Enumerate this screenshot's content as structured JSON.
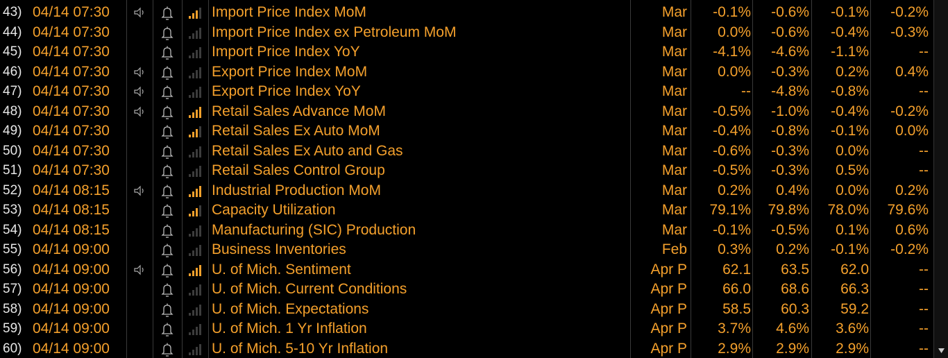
{
  "rows": [
    {
      "number": "43)",
      "datetime": "04/14 07:30",
      "alert": true,
      "relevance": 3,
      "event": "Import Price Index MoM",
      "period": "Mar",
      "survey": "-0.1%",
      "actual": "-0.6%",
      "prior": "-0.1%",
      "revised": "-0.2%"
    },
    {
      "number": "44)",
      "datetime": "04/14 07:30",
      "alert": false,
      "relevance": 0,
      "event": "Import Price Index ex Petroleum MoM",
      "period": "Mar",
      "survey": "0.0%",
      "actual": "-0.6%",
      "prior": "-0.4%",
      "revised": "-0.3%"
    },
    {
      "number": "45)",
      "datetime": "04/14 07:30",
      "alert": false,
      "relevance": 0,
      "event": "Import Price Index YoY",
      "period": "Mar",
      "survey": "-4.1%",
      "actual": "-4.6%",
      "prior": "-1.1%",
      "revised": "--"
    },
    {
      "number": "46)",
      "datetime": "04/14 07:30",
      "alert": true,
      "relevance": 0,
      "event": "Export Price Index MoM",
      "period": "Mar",
      "survey": "0.0%",
      "actual": "-0.3%",
      "prior": "0.2%",
      "revised": "0.4%"
    },
    {
      "number": "47)",
      "datetime": "04/14 07:30",
      "alert": true,
      "relevance": 0,
      "event": "Export Price Index YoY",
      "period": "Mar",
      "survey": "--",
      "actual": "-4.8%",
      "prior": "-0.8%",
      "revised": "--"
    },
    {
      "number": "48)",
      "datetime": "04/14 07:30",
      "alert": true,
      "relevance": 4,
      "event": "Retail Sales Advance MoM",
      "period": "Mar",
      "survey": "-0.5%",
      "actual": "-1.0%",
      "prior": "-0.4%",
      "revised": "-0.2%"
    },
    {
      "number": "49)",
      "datetime": "04/14 07:30",
      "alert": false,
      "relevance": 3,
      "event": "Retail Sales Ex Auto MoM",
      "period": "Mar",
      "survey": "-0.4%",
      "actual": "-0.8%",
      "prior": "-0.1%",
      "revised": "0.0%"
    },
    {
      "number": "50)",
      "datetime": "04/14 07:30",
      "alert": false,
      "relevance": 0,
      "event": "Retail Sales Ex Auto and Gas",
      "period": "Mar",
      "survey": "-0.6%",
      "actual": "-0.3%",
      "prior": "0.0%",
      "revised": "--"
    },
    {
      "number": "51)",
      "datetime": "04/14 07:30",
      "alert": false,
      "relevance": 0,
      "event": "Retail Sales Control Group",
      "period": "Mar",
      "survey": "-0.5%",
      "actual": "-0.3%",
      "prior": "0.5%",
      "revised": "--"
    },
    {
      "number": "52)",
      "datetime": "04/14 08:15",
      "alert": true,
      "relevance": 4,
      "event": "Industrial Production MoM",
      "period": "Mar",
      "survey": "0.2%",
      "actual": "0.4%",
      "prior": "0.0%",
      "revised": "0.2%"
    },
    {
      "number": "53)",
      "datetime": "04/14 08:15",
      "alert": false,
      "relevance": 3,
      "event": "Capacity Utilization",
      "period": "Mar",
      "survey": "79.1%",
      "actual": "79.8%",
      "prior": "78.0%",
      "revised": "79.6%"
    },
    {
      "number": "54)",
      "datetime": "04/14 08:15",
      "alert": false,
      "relevance": 0,
      "event": "Manufacturing (SIC) Production",
      "period": "Mar",
      "survey": "-0.1%",
      "actual": "-0.5%",
      "prior": "0.1%",
      "revised": "0.6%"
    },
    {
      "number": "55)",
      "datetime": "04/14 09:00",
      "alert": false,
      "relevance": 0,
      "event": "Business Inventories",
      "period": "Feb",
      "survey": "0.3%",
      "actual": "0.2%",
      "prior": "-0.1%",
      "revised": "-0.2%"
    },
    {
      "number": "56)",
      "datetime": "04/14 09:00",
      "alert": true,
      "relevance": 4,
      "event": "U. of Mich. Sentiment",
      "period": "Apr P",
      "survey": "62.1",
      "actual": "63.5",
      "prior": "62.0",
      "revised": "--"
    },
    {
      "number": "57)",
      "datetime": "04/14 09:00",
      "alert": false,
      "relevance": 0,
      "event": "U. of Mich. Current Conditions",
      "period": "Apr P",
      "survey": "66.0",
      "actual": "68.6",
      "prior": "66.3",
      "revised": "--"
    },
    {
      "number": "58)",
      "datetime": "04/14 09:00",
      "alert": false,
      "relevance": 0,
      "event": "U. of Mich. Expectations",
      "period": "Apr P",
      "survey": "58.5",
      "actual": "60.3",
      "prior": "59.2",
      "revised": "--"
    },
    {
      "number": "59)",
      "datetime": "04/14 09:00",
      "alert": false,
      "relevance": 0,
      "event": "U. of Mich. 1 Yr Inflation",
      "period": "Apr P",
      "survey": "3.7%",
      "actual": "4.6%",
      "prior": "3.6%",
      "revised": "--"
    },
    {
      "number": "60)",
      "datetime": "04/14 09:00",
      "alert": false,
      "relevance": 0,
      "event": "U. of Mich. 5-10 Yr Inflation",
      "period": "Apr P",
      "survey": "2.9%",
      "actual": "2.9%",
      "prior": "2.9%",
      "revised": "--"
    }
  ]
}
